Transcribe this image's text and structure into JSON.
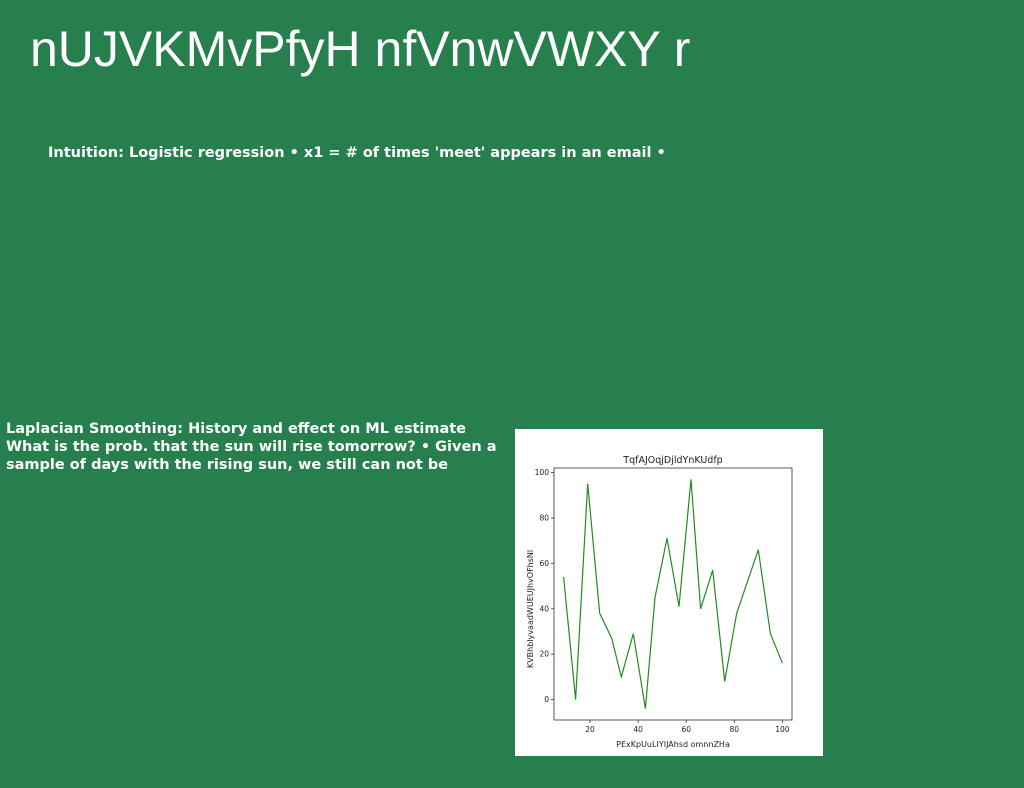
{
  "slide": {
    "title": "nUJVKMvPfyH nfVnwVWXY r",
    "subtitle": "Intuition: Logistic regression • x1 = # of times 'meet' appears in an email •",
    "body_lines": [
      "Laplacian Smoothing: History and effect on ML estimate",
      "What is the prob. that the sun will rise tomorrow? • Given a",
      "sample of days with the rising sun, we still can not be"
    ]
  },
  "chart_data": {
    "type": "line",
    "title": "TqfAJOqjDjldYnKUdfp",
    "xlabel": "PExKpUuLIYIJAhsd omnnZHa",
    "ylabel": "KVBhbIyvaadWUEUJhvOFhsNl",
    "x": [
      9,
      14,
      19,
      24,
      29,
      33,
      38,
      43,
      47,
      52,
      57,
      62,
      66,
      71,
      76,
      81,
      90,
      95,
      100
    ],
    "values": [
      54,
      0,
      95,
      38,
      27,
      10,
      29,
      -4,
      45,
      71,
      41,
      97,
      40,
      57,
      8,
      38,
      66,
      29,
      16
    ],
    "xlim": [
      5,
      104
    ],
    "ylim": [
      -9,
      102
    ],
    "xticks": [
      20,
      40,
      60,
      80,
      100
    ],
    "yticks": [
      0,
      20,
      40,
      60,
      80,
      100
    ],
    "line_color": "#228b22",
    "grid": false
  }
}
